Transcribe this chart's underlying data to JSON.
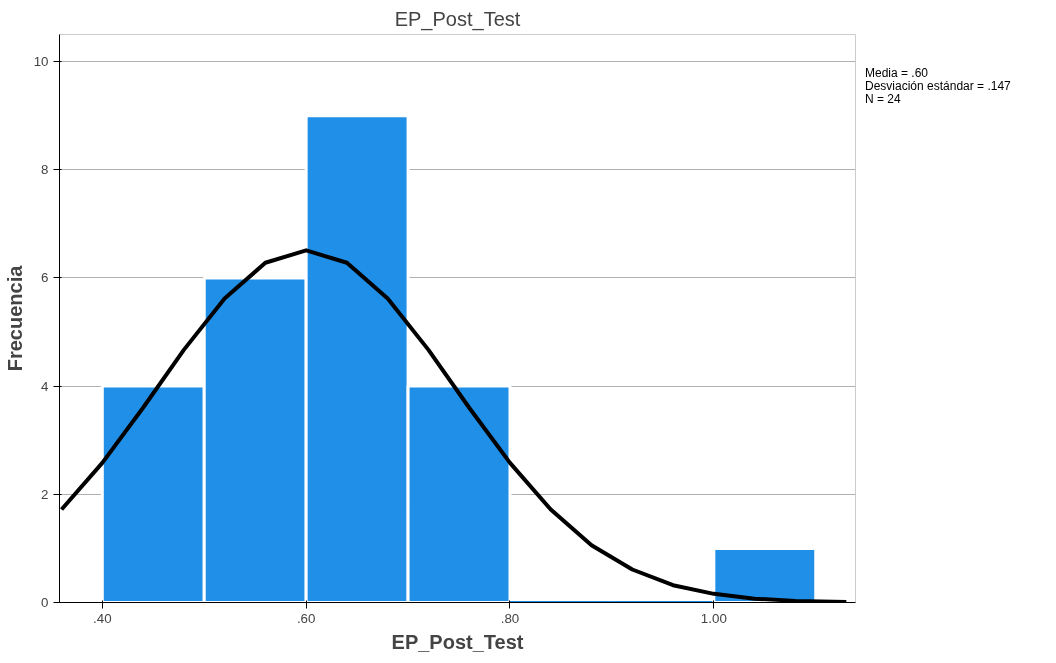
{
  "chart_data": {
    "type": "histogram",
    "title": "EP_Post_Test",
    "xlabel": "EP_Post_Test",
    "ylabel": "Frecuencia",
    "bins": [
      0.4,
      0.5,
      0.6,
      0.7,
      0.8,
      0.9,
      1.0,
      1.1
    ],
    "values": [
      4,
      6,
      9,
      4,
      0,
      0,
      1
    ],
    "color": "#1f8fe8",
    "series": [
      {
        "type": "line",
        "color": "#000000",
        "x": [
          0.36,
          0.4,
          0.44,
          0.48,
          0.52,
          0.56,
          0.6,
          0.64,
          0.68,
          0.72,
          0.76,
          0.8,
          0.84,
          0.88,
          0.92,
          0.96,
          1.0,
          1.04,
          1.08,
          1.13
        ],
        "values": [
          1.72,
          2.58,
          3.6,
          4.67,
          5.62,
          6.28,
          6.51,
          6.28,
          5.62,
          4.67,
          3.6,
          2.58,
          1.72,
          1.06,
          0.61,
          0.32,
          0.16,
          0.07,
          0.03,
          0.01
        ]
      }
    ],
    "xlim": [
      0.358,
      1.139
    ],
    "xticks": [
      {
        "value": 0.4,
        "label": ".40"
      },
      {
        "value": 0.6,
        "label": ".60"
      },
      {
        "value": 0.8,
        "label": ".80"
      },
      {
        "value": 1.0,
        "label": "1.00"
      }
    ],
    "ylim": [
      0,
      10.5
    ],
    "yticks": [
      0,
      2,
      4,
      6,
      8,
      10
    ],
    "grid": "y",
    "annotations": [
      "Media = .60",
      "Desviación estándar = .147",
      "N = 24"
    ]
  }
}
